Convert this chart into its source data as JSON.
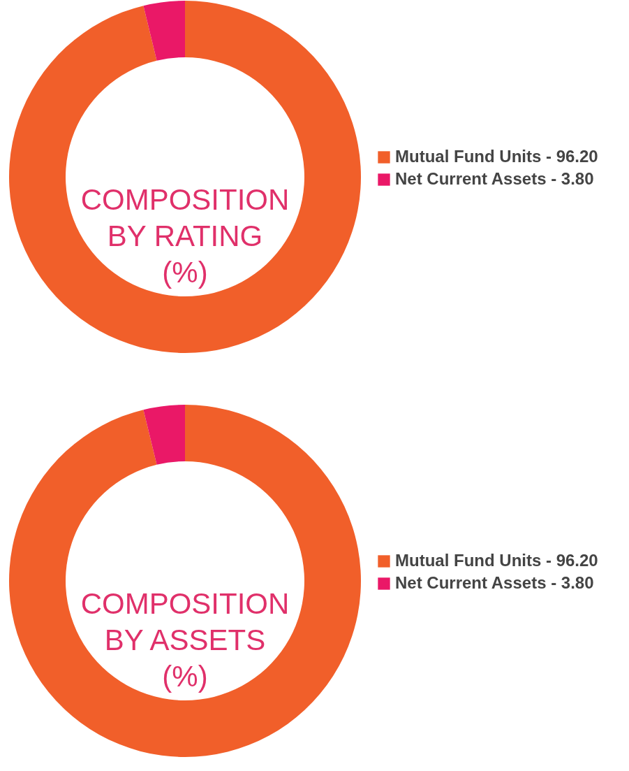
{
  "chart_data": [
    {
      "type": "donut",
      "title": "COMPOSITION BY RATING (%)",
      "categories": [
        "Mutual Fund Units - 96.20",
        "Net Current Assets - 3.80"
      ],
      "values": [
        96.2,
        3.8
      ],
      "colors": [
        "#f15f2a",
        "#ea1867"
      ],
      "legend": "right"
    },
    {
      "type": "donut",
      "title": "COMPOSITION BY ASSETS (%)",
      "categories": [
        "Mutual Fund Units - 96.20",
        "Net Current Assets - 3.80"
      ],
      "values": [
        96.2,
        3.8
      ],
      "colors": [
        "#f15f2a",
        "#ea1867"
      ],
      "legend": "right"
    }
  ]
}
